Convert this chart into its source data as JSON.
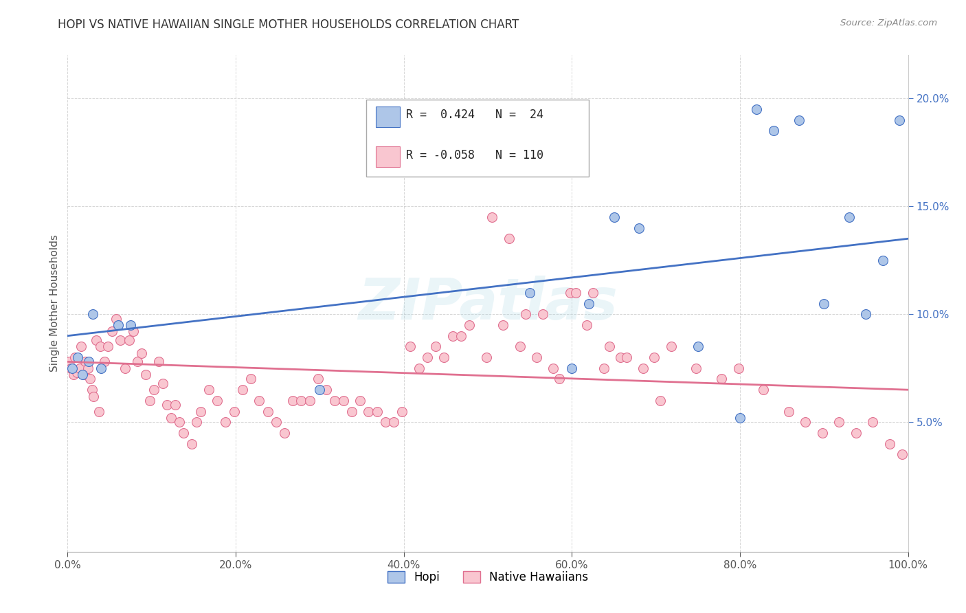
{
  "title": "HOPI VS NATIVE HAWAIIAN SINGLE MOTHER HOUSEHOLDS CORRELATION CHART",
  "source": "Source: ZipAtlas.com",
  "ylabel": "Single Mother Households",
  "watermark": "ZIPatlas",
  "xlim": [
    0,
    100
  ],
  "ylim": [
    -1,
    22
  ],
  "ytick_labels": [
    "5.0%",
    "10.0%",
    "15.0%",
    "20.0%"
  ],
  "ytick_values": [
    5,
    10,
    15,
    20
  ],
  "xtick_labels": [
    "0.0%",
    "20.0%",
    "40.0%",
    "60.0%",
    "80.0%",
    "100.0%"
  ],
  "xtick_values": [
    0,
    20,
    40,
    60,
    80,
    100
  ],
  "hopi_color": "#aec6e8",
  "hopi_edge_color": "#4472c4",
  "native_hawaiian_color": "#f9c6d0",
  "native_hawaiian_edge_color": "#e07090",
  "hopi_R": "0.424",
  "hopi_N": "24",
  "native_hawaiian_R": "-0.058",
  "native_hawaiian_N": "110",
  "hopi_line_color": "#4472c4",
  "native_hawaiian_line_color": "#e07090",
  "legend_label_hopi": "Hopi",
  "legend_label_native": "Native Hawaiians",
  "hopi_scatter_x": [
    0.5,
    1.2,
    1.8,
    2.5,
    3.0,
    4.0,
    6.0,
    7.5,
    30.0,
    55.0,
    60.0,
    62.0,
    65.0,
    68.0,
    75.0,
    80.0,
    82.0,
    84.0,
    87.0,
    90.0,
    93.0,
    95.0,
    97.0,
    99.0
  ],
  "hopi_scatter_y": [
    7.5,
    8.0,
    7.2,
    7.8,
    10.0,
    7.5,
    9.5,
    9.5,
    6.5,
    11.0,
    7.5,
    10.5,
    14.5,
    14.0,
    8.5,
    5.2,
    19.5,
    18.5,
    19.0,
    10.5,
    14.5,
    10.0,
    12.5,
    19.0
  ],
  "nh_scatter_x": [
    0.2,
    0.4,
    0.7,
    0.9,
    1.1,
    1.4,
    1.6,
    1.9,
    2.1,
    2.4,
    2.7,
    2.9,
    3.1,
    3.4,
    3.7,
    3.9,
    4.4,
    4.8,
    5.3,
    5.8,
    6.3,
    6.8,
    7.3,
    7.8,
    8.3,
    8.8,
    9.3,
    9.8,
    10.3,
    10.8,
    11.3,
    11.8,
    12.3,
    12.8,
    13.3,
    13.8,
    14.8,
    15.3,
    15.8,
    16.8,
    17.8,
    18.8,
    19.8,
    20.8,
    21.8,
    22.8,
    23.8,
    24.8,
    25.8,
    26.8,
    27.8,
    28.8,
    29.8,
    30.8,
    31.8,
    32.8,
    33.8,
    34.8,
    35.8,
    36.8,
    37.8,
    38.8,
    39.8,
    40.8,
    41.8,
    42.8,
    43.8,
    44.8,
    45.8,
    46.8,
    47.8,
    49.8,
    51.8,
    53.8,
    55.8,
    57.8,
    59.8,
    61.8,
    63.8,
    65.8,
    69.8,
    71.8,
    74.8,
    77.8,
    79.8,
    82.8,
    85.8,
    87.8,
    89.8,
    91.8,
    93.8,
    95.8,
    97.8,
    99.3,
    50.5,
    52.5,
    54.5,
    56.5,
    58.5,
    60.5,
    62.5,
    64.5,
    66.5,
    68.5,
    70.5
  ],
  "nh_scatter_y": [
    7.8,
    7.5,
    7.2,
    8.0,
    7.3,
    7.5,
    8.5,
    7.2,
    7.8,
    7.5,
    7.0,
    6.5,
    6.2,
    8.8,
    5.5,
    8.5,
    7.8,
    8.5,
    9.2,
    9.8,
    8.8,
    7.5,
    8.8,
    9.2,
    7.8,
    8.2,
    7.2,
    6.0,
    6.5,
    7.8,
    6.8,
    5.8,
    5.2,
    5.8,
    5.0,
    4.5,
    4.0,
    5.0,
    5.5,
    6.5,
    6.0,
    5.0,
    5.5,
    6.5,
    7.0,
    6.0,
    5.5,
    5.0,
    4.5,
    6.0,
    6.0,
    6.0,
    7.0,
    6.5,
    6.0,
    6.0,
    5.5,
    6.0,
    5.5,
    5.5,
    5.0,
    5.0,
    5.5,
    8.5,
    7.5,
    8.0,
    8.5,
    8.0,
    9.0,
    9.0,
    9.5,
    8.0,
    9.5,
    8.5,
    8.0,
    7.5,
    11.0,
    9.5,
    7.5,
    8.0,
    8.0,
    8.5,
    7.5,
    7.0,
    7.5,
    6.5,
    5.5,
    5.0,
    4.5,
    5.0,
    4.5,
    5.0,
    4.0,
    3.5,
    14.5,
    13.5,
    10.0,
    10.0,
    7.0,
    11.0,
    11.0,
    8.5,
    8.0,
    7.5,
    6.0
  ],
  "hopi_line_x0": 0,
  "hopi_line_x1": 100,
  "hopi_line_y0": 9.0,
  "hopi_line_y1": 13.5,
  "nh_line_x0": 0,
  "nh_line_x1": 100,
  "nh_line_y0": 7.8,
  "nh_line_y1": 6.5
}
